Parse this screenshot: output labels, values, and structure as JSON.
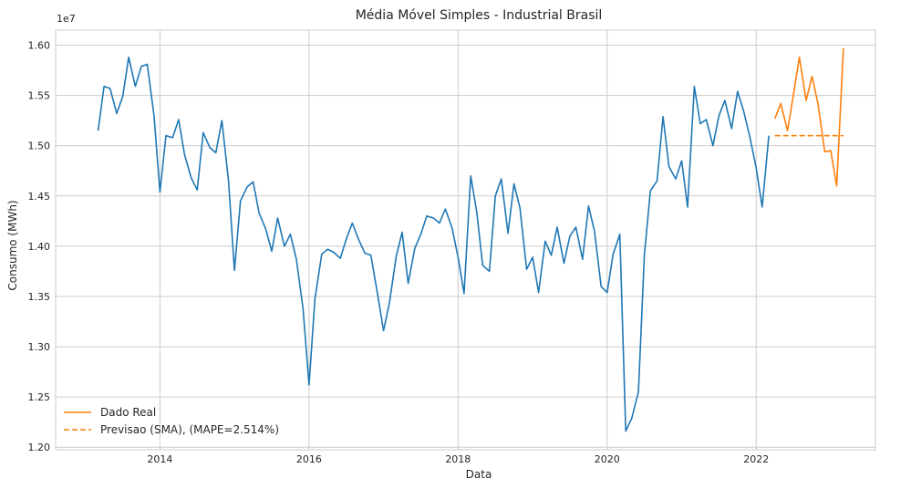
{
  "chart_data": {
    "type": "line",
    "title": "Média Móvel Simples - Industrial Brasil",
    "xlabel": "Data",
    "ylabel": "Consumo (MWh)",
    "y_offset_label": "1e7",
    "xlim": [
      2012.6,
      2023.6
    ],
    "ylim": [
      12000000,
      16000000
    ],
    "x_ticks": [
      2014,
      2016,
      2018,
      2020,
      2022
    ],
    "x_tick_labels": [
      "2014",
      "2016",
      "2018",
      "2020",
      "2022"
    ],
    "y_ticks": [
      12000000,
      12500000,
      13000000,
      13500000,
      14000000,
      14500000,
      15000000,
      15500000,
      16000000
    ],
    "y_tick_labels": [
      "1.20",
      "1.25",
      "1.30",
      "1.35",
      "1.40",
      "1.45",
      "1.50",
      "1.55",
      "1.60"
    ],
    "grid": true,
    "legend_position": "lower-left",
    "legend": [
      {
        "label": "Dado Real",
        "color": "#ff7f0e",
        "style": "solid"
      },
      {
        "label": "Previsao (SMA), (MAPE=2.514%)",
        "color": "#ff7f0e",
        "style": "dashed"
      }
    ],
    "series": [
      {
        "color": "#1f77b4",
        "style": "solid",
        "x": [
          2013.17,
          2013.25,
          2013.33,
          2013.42,
          2013.5,
          2013.58,
          2013.67,
          2013.75,
          2013.83,
          2013.92,
          2014.0,
          2014.08,
          2014.17,
          2014.25,
          2014.33,
          2014.42,
          2014.5,
          2014.58,
          2014.67,
          2014.75,
          2014.83,
          2014.92,
          2015.0,
          2015.08,
          2015.17,
          2015.25,
          2015.33,
          2015.42,
          2015.5,
          2015.58,
          2015.67,
          2015.75,
          2015.83,
          2015.92,
          2016.0,
          2016.08,
          2016.17,
          2016.25,
          2016.33,
          2016.42,
          2016.5,
          2016.58,
          2016.67,
          2016.75,
          2016.83,
          2016.92,
          2017.0,
          2017.08,
          2017.17,
          2017.25,
          2017.33,
          2017.42,
          2017.5,
          2017.58,
          2017.67,
          2017.75,
          2017.83,
          2017.92,
          2018.0,
          2018.08,
          2018.17,
          2018.25,
          2018.33,
          2018.42,
          2018.5,
          2018.58,
          2018.67,
          2018.75,
          2018.83,
          2018.92,
          2019.0,
          2019.08,
          2019.17,
          2019.25,
          2019.33,
          2019.42,
          2019.5,
          2019.58,
          2019.67,
          2019.75,
          2019.83,
          2019.92,
          2020.0,
          2020.08,
          2020.17,
          2020.25,
          2020.33,
          2020.42,
          2020.5,
          2020.58,
          2020.67,
          2020.75,
          2020.83,
          2020.92,
          2021.0,
          2021.08,
          2021.17,
          2021.25,
          2021.33,
          2021.42,
          2021.5,
          2021.58,
          2021.67,
          2021.75,
          2021.83,
          2021.92,
          2022.0,
          2022.08,
          2022.17
        ],
        "y": [
          15150000,
          15590000,
          15570000,
          15320000,
          15490000,
          15880000,
          15590000,
          15790000,
          15810000,
          15300000,
          14540000,
          15100000,
          15080000,
          15260000,
          14910000,
          14680000,
          14560000,
          15130000,
          14980000,
          14930000,
          15250000,
          14650000,
          13760000,
          14450000,
          14590000,
          14640000,
          14330000,
          14170000,
          13950000,
          14280000,
          14000000,
          14120000,
          13870000,
          13380000,
          12620000,
          13480000,
          13920000,
          13970000,
          13940000,
          13880000,
          14070000,
          14230000,
          14060000,
          13930000,
          13910000,
          13520000,
          13160000,
          13440000,
          13900000,
          14140000,
          13630000,
          13980000,
          14120000,
          14300000,
          14280000,
          14230000,
          14370000,
          14180000,
          13890000,
          13530000,
          14700000,
          14340000,
          13810000,
          13750000,
          14500000,
          14670000,
          14130000,
          14620000,
          14380000,
          13770000,
          13890000,
          13540000,
          14050000,
          13910000,
          14190000,
          13830000,
          14100000,
          14190000,
          13870000,
          14400000,
          14150000,
          13600000,
          13540000,
          13920000,
          14120000,
          12160000,
          12290000,
          12550000,
          13910000,
          14550000,
          14650000,
          15290000,
          14790000,
          14670000,
          14850000,
          14390000,
          15590000,
          15220000,
          15260000,
          15000000,
          15300000,
          15450000,
          15170000,
          15540000,
          15350000,
          15070000,
          14780000,
          14390000,
          15100000
        ]
      },
      {
        "color": "#ff7f0e",
        "style": "solid",
        "x": [
          2022.25,
          2022.33,
          2022.42,
          2022.5,
          2022.58,
          2022.67,
          2022.75,
          2022.83,
          2022.92,
          2023.0,
          2023.08,
          2023.17
        ],
        "y": [
          15270000,
          15420000,
          15150000,
          15510000,
          15880000,
          15450000,
          15690000,
          15410000,
          14940000,
          14950000,
          14600000,
          15970000
        ]
      },
      {
        "color": "#ff7f0e",
        "style": "dashed",
        "x": [
          2022.25,
          2022.33,
          2022.42,
          2022.5,
          2022.58,
          2022.67,
          2022.75,
          2022.83,
          2022.92,
          2023.0,
          2023.08,
          2023.17
        ],
        "y": [
          15100000,
          15100000,
          15100000,
          15100000,
          15100000,
          15100000,
          15100000,
          15100000,
          15100000,
          15100000,
          15100000,
          15100000
        ]
      }
    ]
  }
}
